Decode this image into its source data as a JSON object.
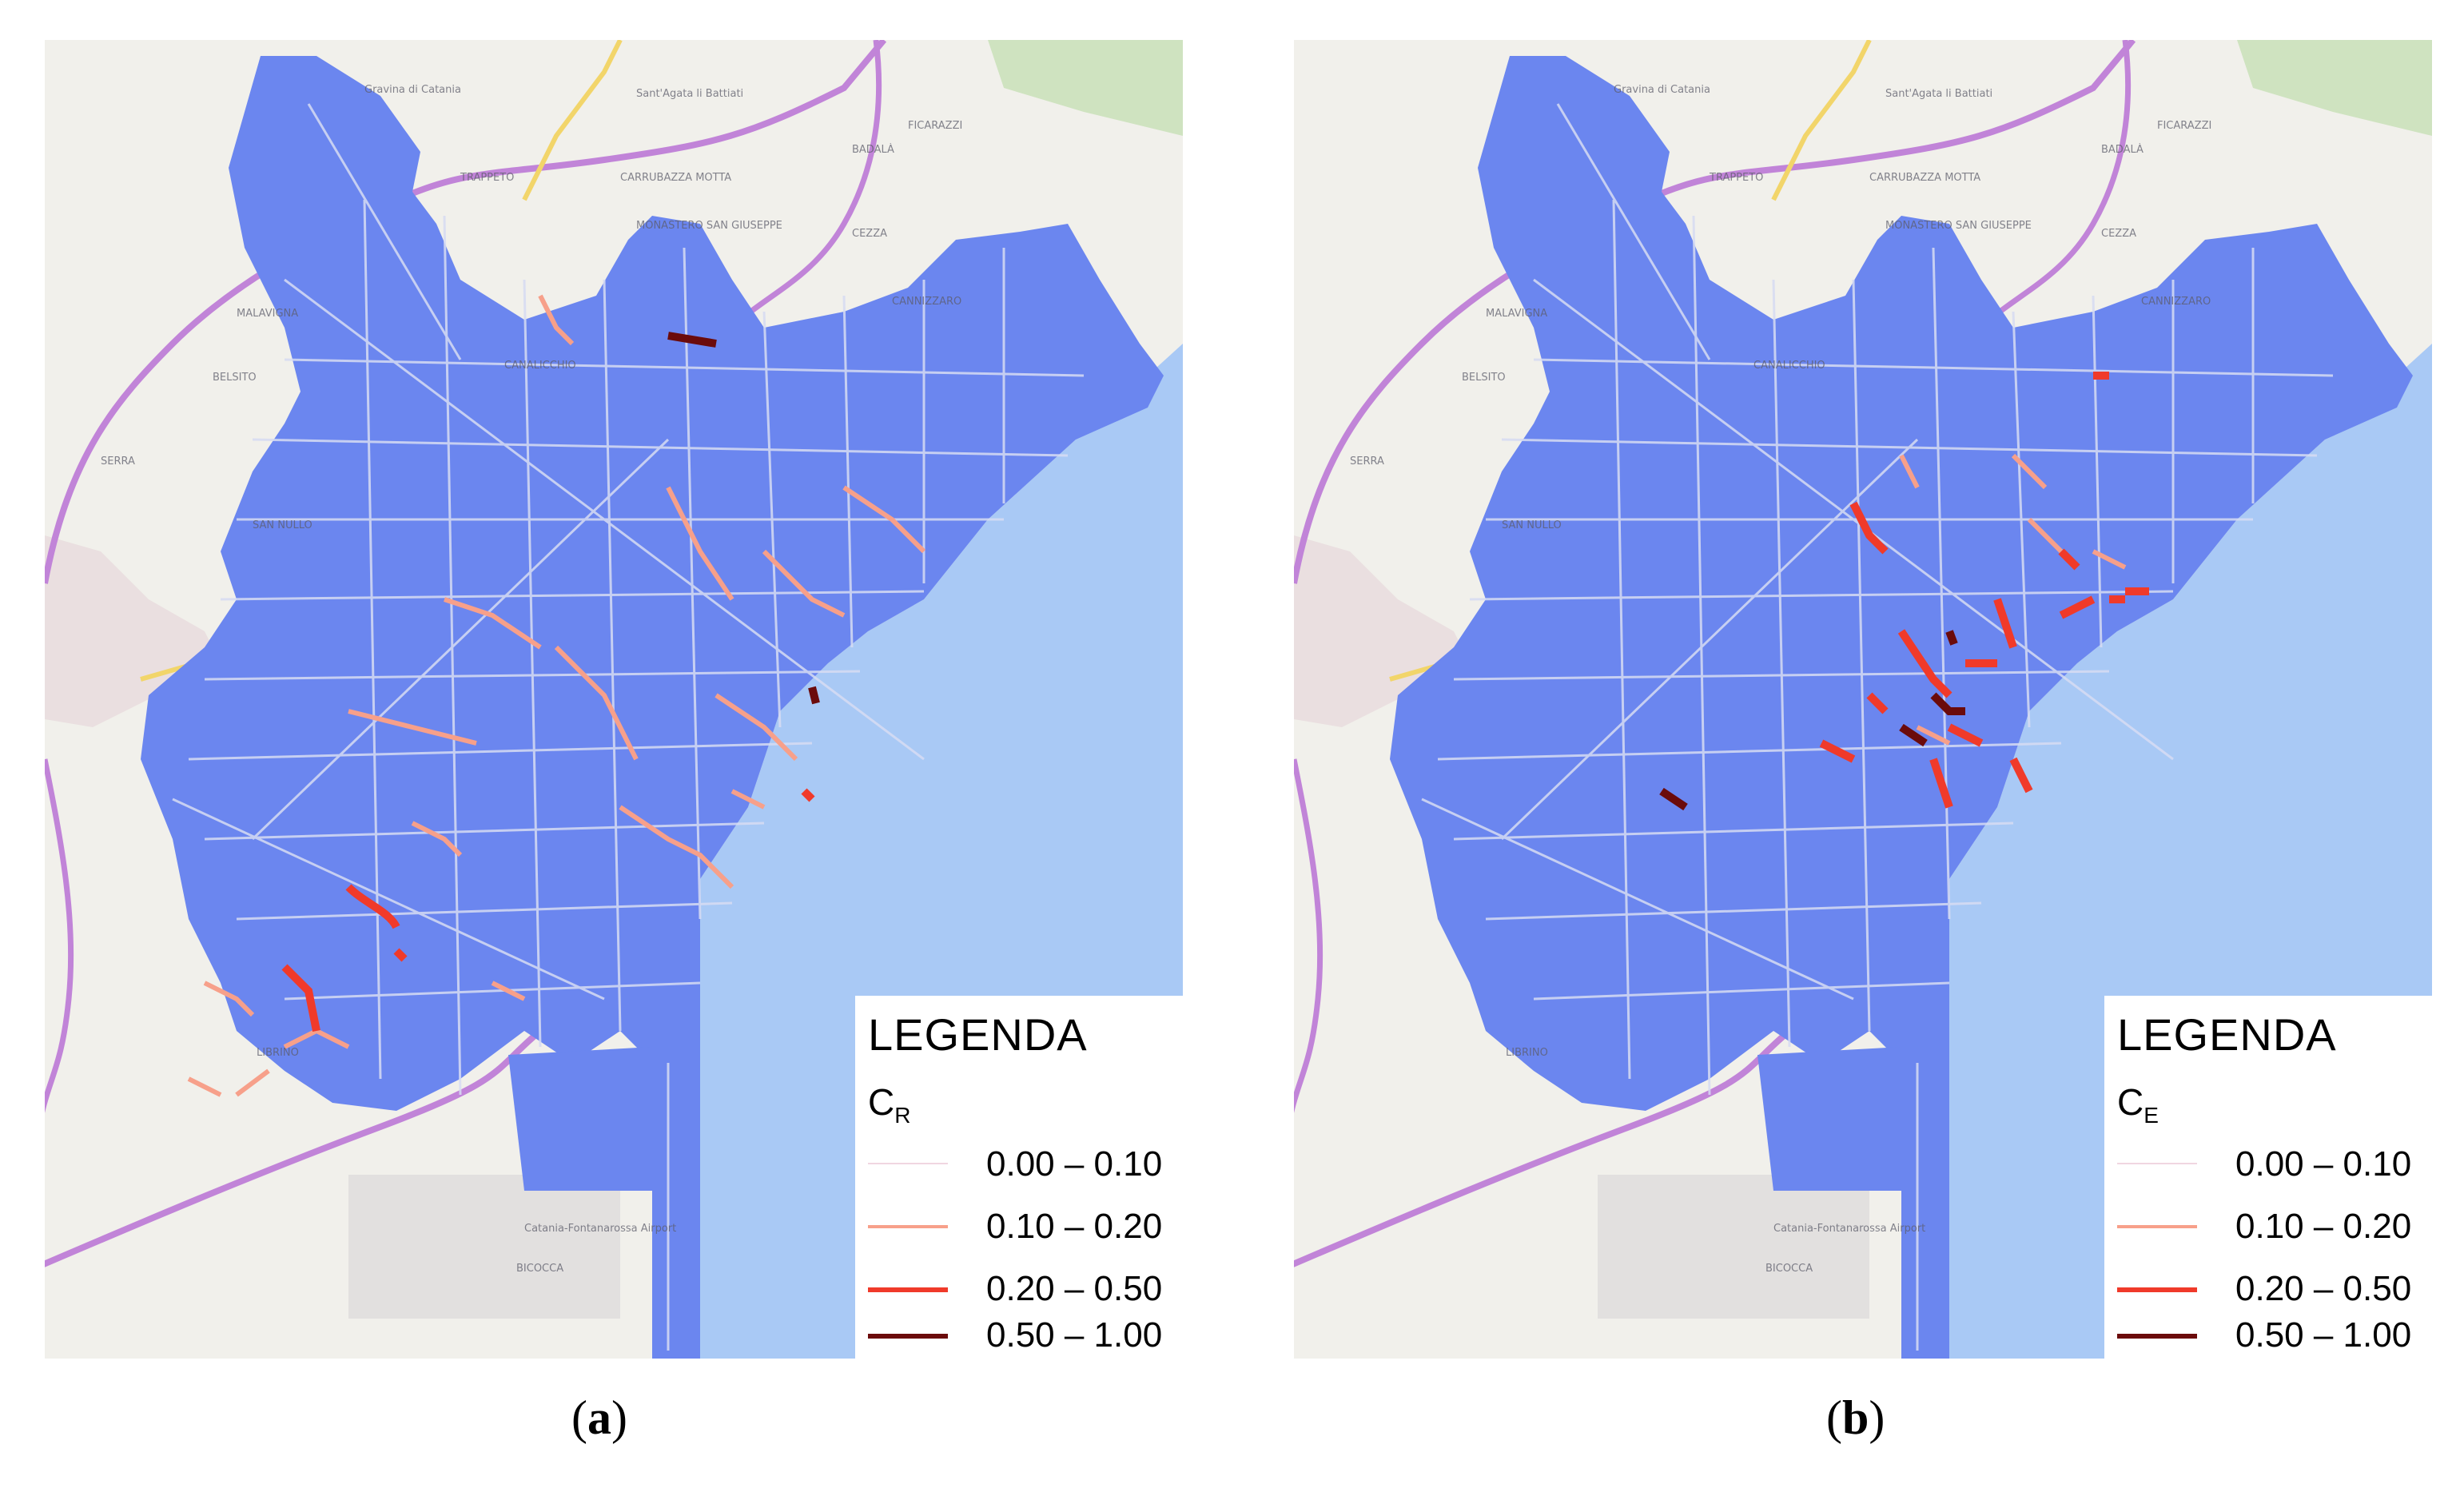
{
  "colors": {
    "city_fill": "#6b86ef",
    "sea": "#a9c9f5",
    "land": "#f1f0eb",
    "park": "#cfe3c0",
    "highway": "#c184d8",
    "street": "#d7dcf3",
    "class_0": "#f0d6e1",
    "class_1": "#f7a08a",
    "class_2": "#f03a2a",
    "class_3": "#6b0b0b"
  },
  "icons": [
    "legend-line-icon"
  ],
  "panels": [
    {
      "id": "a",
      "legend_title": "LEGENDA",
      "symbol_main": "C",
      "symbol_sub": "R",
      "caption_letter": "a",
      "classes": [
        {
          "label": "0.00 – 0.10",
          "color": "#f0d6e1"
        },
        {
          "label": "0.10 – 0.20",
          "color": "#f7a08a"
        },
        {
          "label": "0.20 – 0.50",
          "color": "#f03a2a"
        },
        {
          "label": "0.50 – 1.00",
          "color": "#6b0b0b"
        }
      ],
      "map_labels": [
        "Gravina di Catania",
        "Sant'Agata li Battiati",
        "TRAPPETO",
        "CARRUBAZZA MOTTA",
        "MONASTERO SAN GIUSEPPE",
        "CEZZA",
        "CANALICCHIO",
        "MALAVIGNA",
        "BELSITO",
        "SERRA",
        "SAN NULLO",
        "BADALÀ",
        "FICARAZZI",
        "CANNIZZARO",
        "LIBRINO",
        "Catania-Fontanarossa Airport",
        "BICOCCA"
      ]
    },
    {
      "id": "b",
      "legend_title": "LEGENDA",
      "symbol_main": "C",
      "symbol_sub": "E",
      "caption_letter": "b",
      "classes": [
        {
          "label": "0.00 – 0.10",
          "color": "#f0d6e1"
        },
        {
          "label": "0.10 – 0.20",
          "color": "#f7a08a"
        },
        {
          "label": "0.20 – 0.50",
          "color": "#f03a2a"
        },
        {
          "label": "0.50 – 1.00",
          "color": "#6b0b0b"
        }
      ],
      "map_labels": [
        "Gravina di Catania",
        "Sant'Agata li Battiati",
        "TRAPPETO",
        "CARRUBAZZA MOTTA",
        "MONASTERO SAN GIUSEPPE",
        "CEZZA",
        "CANALICCHIO",
        "MALAVIGNA",
        "BELSITO",
        "SERRA",
        "SAN NULLO",
        "BADALÀ",
        "FICARAZZI",
        "CANNIZZARO",
        "LIBRINO",
        "Catania-Fontanarossa Airport",
        "BICOCCA"
      ]
    }
  ]
}
